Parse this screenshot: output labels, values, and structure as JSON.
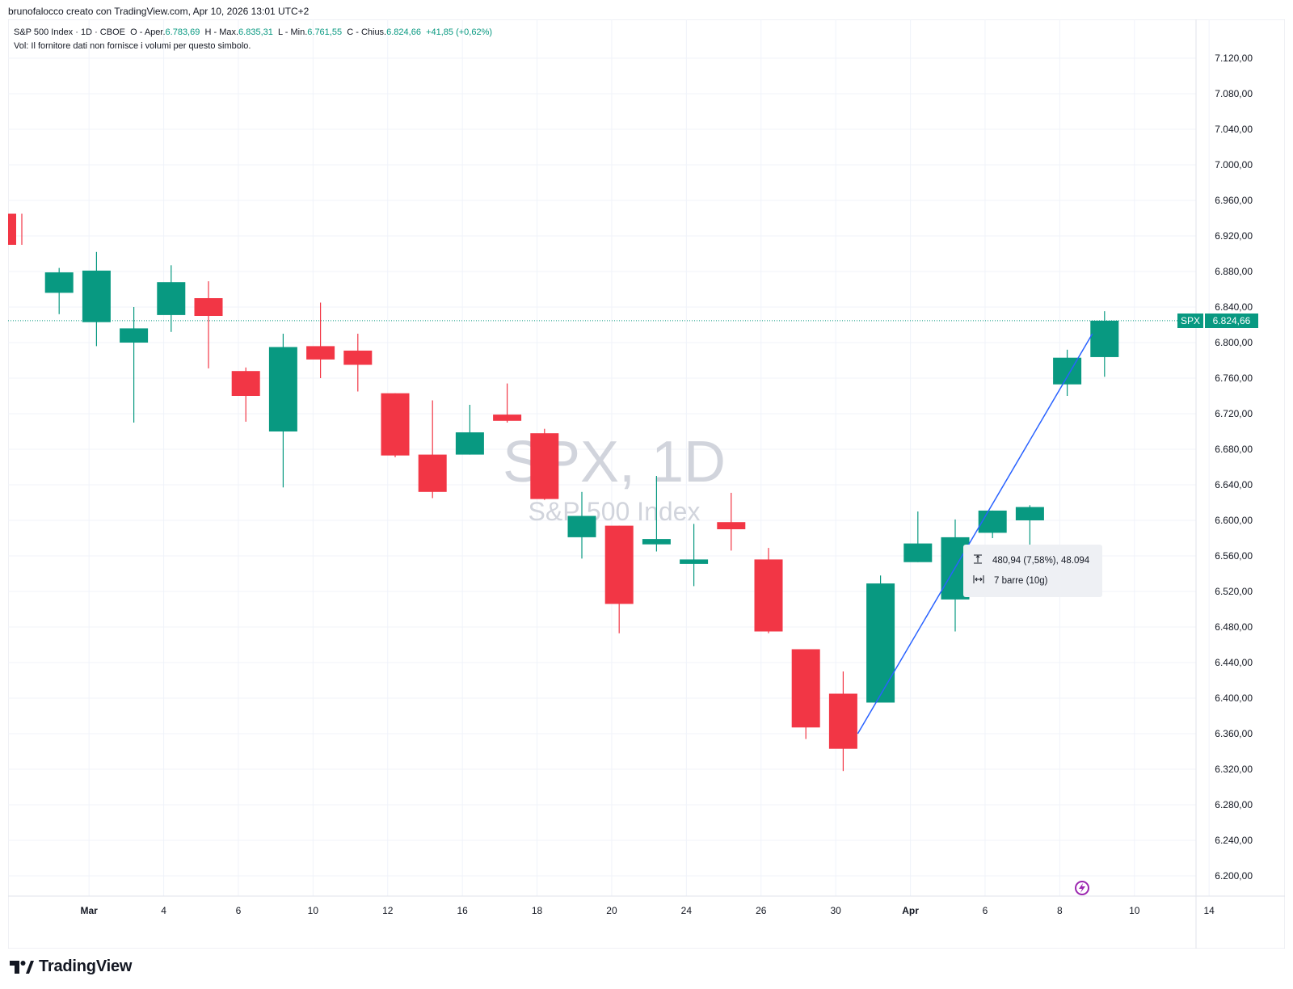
{
  "header": {
    "attribution": "brunofalocco creato con TradingView.com, Apr 10, 2026 13:01 UTC+2"
  },
  "legend": {
    "symbol_line": "S&P 500 Index · 1D · CBOE",
    "open_label": "O - Aper.",
    "open_value": "6.783,69",
    "high_label": "H - Max.",
    "high_value": "6.835,31",
    "low_label": "L - Min.",
    "low_value": "6.761,55",
    "close_label": "C - Chius.",
    "close_value": "6.824,66",
    "change": "+41,85 (+0,62%)",
    "volume_note": "Vol: Il fornitore dati non fornisce i volumi per questo simbolo."
  },
  "watermark": {
    "main": "SPX, 1D",
    "sub": "S&P 500 Index"
  },
  "price_label": {
    "symbol": "SPX",
    "value": "6.824,66"
  },
  "measure": {
    "price_range": "480,94 (7,58%), 48.094",
    "bars": "7 barre (10g)",
    "price_icon": "vertical-range-icon",
    "bars_icon": "horizontal-range-icon"
  },
  "logo": {
    "text": "TradingView"
  },
  "colors": {
    "up": "#089981",
    "down": "#f23645",
    "grid": "#f0f3fa",
    "trendline": "#2962ff",
    "watermark": "#d1d4dc"
  },
  "chart_data": {
    "type": "candlestick",
    "symbol": "SPX",
    "interval": "1D",
    "ylim": [
      6180,
      7140
    ],
    "y_ticks": [
      "7.120,00",
      "7.080,00",
      "7.040,00",
      "7.000,00",
      "6.960,00",
      "6.920,00",
      "6.880,00",
      "6.840,00",
      "6.800,00",
      "6.760,00",
      "6.720,00",
      "6.680,00",
      "6.640,00",
      "6.600,00",
      "6.560,00",
      "6.520,00",
      "6.480,00",
      "6.440,00",
      "6.400,00",
      "6.360,00",
      "6.320,00",
      "6.280,00",
      "6.240,00",
      "6.200,00"
    ],
    "x_ticks": [
      "Mar",
      "4",
      "6",
      "10",
      "12",
      "16",
      "18",
      "20",
      "24",
      "26",
      "30",
      "Apr",
      "6",
      "8",
      "10",
      "14"
    ],
    "candles": [
      {
        "date": "2026-02-26",
        "open": 6945,
        "high": 6945,
        "low": 6910,
        "close": 6910
      },
      {
        "date": "2026-02-27",
        "open": 6856,
        "high": 6884,
        "low": 6832,
        "close": 6879
      },
      {
        "date": "2026-03-02",
        "open": 6823,
        "high": 6902,
        "low": 6796,
        "close": 6881
      },
      {
        "date": "2026-03-03",
        "open": 6800,
        "high": 6840,
        "low": 6710,
        "close": 6816
      },
      {
        "date": "2026-03-04",
        "open": 6831,
        "high": 6887,
        "low": 6812,
        "close": 6868
      },
      {
        "date": "2026-03-05",
        "open": 6850,
        "high": 6869,
        "low": 6771,
        "close": 6830
      },
      {
        "date": "2026-03-06",
        "open": 6768,
        "high": 6772,
        "low": 6711,
        "close": 6740
      },
      {
        "date": "2026-03-09",
        "open": 6700,
        "high": 6810,
        "low": 6637,
        "close": 6795
      },
      {
        "date": "2026-03-10",
        "open": 6796,
        "high": 6845,
        "low": 6760,
        "close": 6781
      },
      {
        "date": "2026-03-11",
        "open": 6791,
        "high": 6810,
        "low": 6745,
        "close": 6775
      },
      {
        "date": "2026-03-12",
        "open": 6743,
        "high": 6743,
        "low": 6671,
        "close": 6673
      },
      {
        "date": "2026-03-13",
        "open": 6674,
        "high": 6735,
        "low": 6625,
        "close": 6632
      },
      {
        "date": "2026-03-16",
        "open": 6674,
        "high": 6730,
        "low": 6674,
        "close": 6699
      },
      {
        "date": "2026-03-17",
        "open": 6719,
        "high": 6754,
        "low": 6710,
        "close": 6712
      },
      {
        "date": "2026-03-18",
        "open": 6698,
        "high": 6703,
        "low": 6623,
        "close": 6624
      },
      {
        "date": "2026-03-19",
        "open": 6581,
        "high": 6632,
        "low": 6557,
        "close": 6605
      },
      {
        "date": "2026-03-20",
        "open": 6594,
        "high": 6594,
        "low": 6473,
        "close": 6506
      },
      {
        "date": "2026-03-23",
        "open": 6573,
        "high": 6650,
        "low": 6565,
        "close": 6579
      },
      {
        "date": "2026-03-24",
        "open": 6551,
        "high": 6596,
        "low": 6526,
        "close": 6556
      },
      {
        "date": "2026-03-25",
        "open": 6598,
        "high": 6631,
        "low": 6566,
        "close": 6590
      },
      {
        "date": "2026-03-26",
        "open": 6556,
        "high": 6569,
        "low": 6473,
        "close": 6475
      },
      {
        "date": "2026-03-27",
        "open": 6455,
        "high": 6455,
        "low": 6354,
        "close": 6367
      },
      {
        "date": "2026-03-30",
        "open": 6405,
        "high": 6430,
        "low": 6318,
        "close": 6343
      },
      {
        "date": "2026-03-31",
        "open": 6395,
        "high": 6538,
        "low": 6395,
        "close": 6529
      },
      {
        "date": "2026-04-01",
        "open": 6553,
        "high": 6610,
        "low": 6553,
        "close": 6574
      },
      {
        "date": "2026-04-02",
        "open": 6511,
        "high": 6601,
        "low": 6475,
        "close": 6581
      },
      {
        "date": "2026-04-06",
        "open": 6586,
        "high": 6611,
        "low": 6580,
        "close": 6611
      },
      {
        "date": "2026-04-07",
        "open": 6600,
        "high": 6617,
        "low": 6536,
        "close": 6615
      },
      {
        "date": "2026-04-08",
        "open": 6753,
        "high": 6792,
        "low": 6740,
        "close": 6783
      },
      {
        "date": "2026-04-09",
        "open": 6783.69,
        "high": 6835.31,
        "low": 6761.55,
        "close": 6824.66
      }
    ],
    "trendline": {
      "from": {
        "date": "2026-03-30",
        "value": 6360
      },
      "to": {
        "date": "2026-04-09",
        "value": 6810
      }
    },
    "last_price": 6824.66,
    "grid": true
  }
}
